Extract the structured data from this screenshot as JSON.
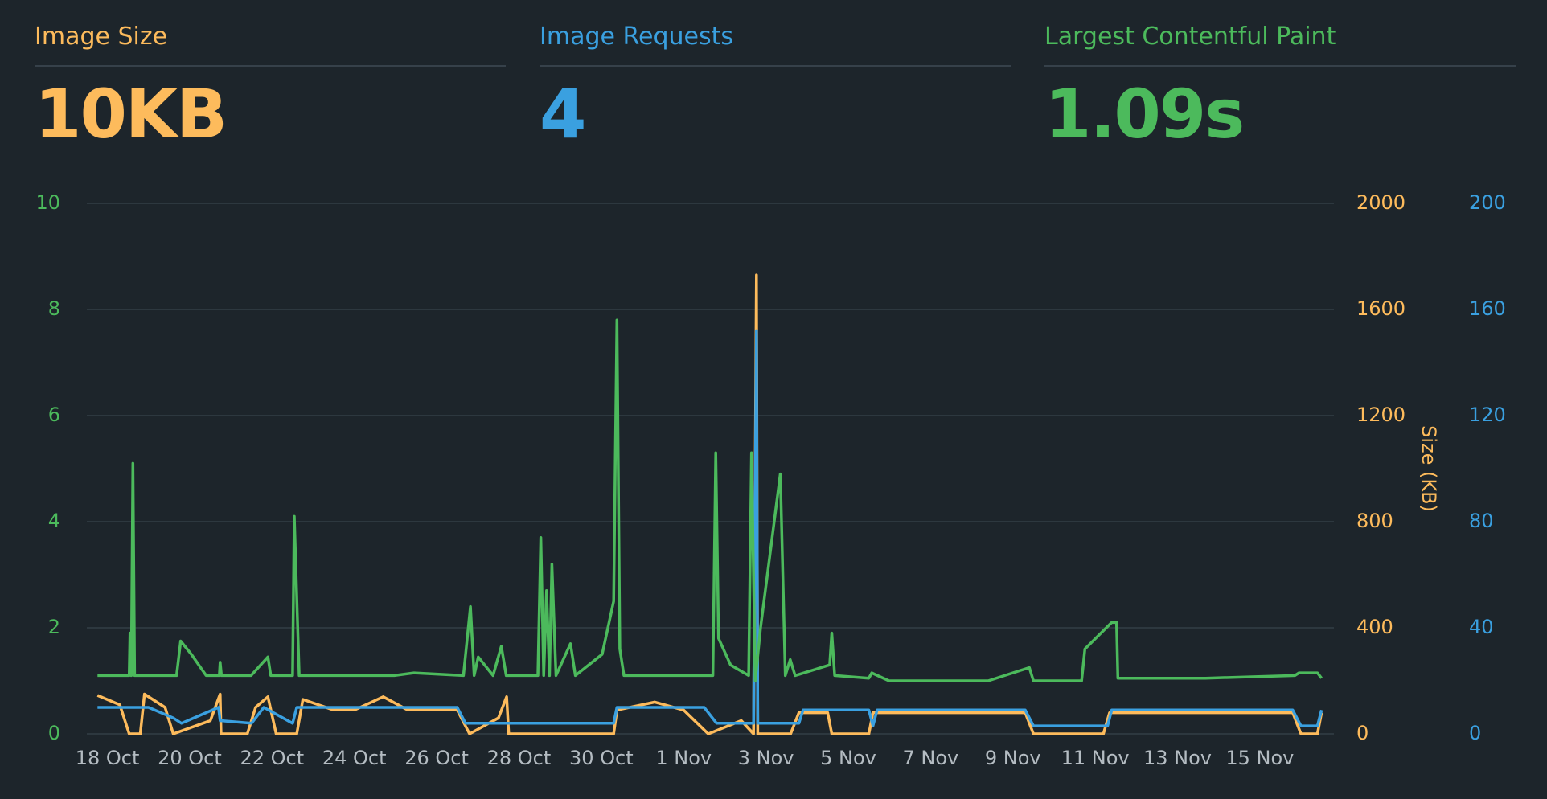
{
  "kpis": [
    {
      "title": "Image Size",
      "value": "10KB",
      "color": "#fdbb5c"
    },
    {
      "title": "Image Requests",
      "value": "4",
      "color": "#3aa0e0"
    },
    {
      "title": "Largest Contentful Paint",
      "value": "1.09s",
      "color": "#4cba5c"
    }
  ],
  "chart_data": {
    "type": "line",
    "xlim": [
      -0.5,
      29.8
    ],
    "xticks": [
      {
        "value": 0,
        "label": "18 Oct"
      },
      {
        "value": 2,
        "label": "20 Oct"
      },
      {
        "value": 4,
        "label": "22 Oct"
      },
      {
        "value": 6,
        "label": "24 Oct"
      },
      {
        "value": 8,
        "label": "26 Oct"
      },
      {
        "value": 10,
        "label": "28 Oct"
      },
      {
        "value": 12,
        "label": "30 Oct"
      },
      {
        "value": 14,
        "label": "1 Nov"
      },
      {
        "value": 16,
        "label": "3 Nov"
      },
      {
        "value": 18,
        "label": "5 Nov"
      },
      {
        "value": 20,
        "label": "7 Nov"
      },
      {
        "value": 22,
        "label": "9 Nov"
      },
      {
        "value": 24,
        "label": "11 Nov"
      },
      {
        "value": 26,
        "label": "13 Nov"
      },
      {
        "value": 28,
        "label": "15 Nov"
      }
    ],
    "ylim": [
      0,
      10
    ],
    "yticks": [
      0,
      2,
      4,
      6,
      8,
      10
    ],
    "ycolor": "#4cba5c",
    "y2lim": [
      0,
      2000
    ],
    "y2ticks": [
      0,
      400,
      800,
      1200,
      1600,
      2000
    ],
    "y2label": "Size (KB)",
    "y2color": "#fdbb5c",
    "y3lim": [
      0,
      200
    ],
    "y3ticks": [
      0,
      40,
      80,
      120,
      160,
      200
    ],
    "y3color": "#3aa0e0",
    "grid": true,
    "series": [
      {
        "color": "#4cba5c",
        "axis": "y",
        "x": [
          -0.24,
          0.53,
          0.55,
          0.58,
          0.62,
          0.66,
          1.68,
          1.78,
          2.04,
          2.4,
          2.72,
          2.74,
          2.77,
          3.49,
          3.9,
          3.97,
          4.5,
          4.54,
          4.66,
          6.97,
          7.45,
          8.65,
          8.82,
          8.91,
          9.01,
          9.37,
          9.57,
          9.69,
          10.46,
          10.53,
          10.6,
          10.67,
          10.74,
          10.8,
          10.9,
          11.25,
          11.37,
          12.02,
          12.3,
          12.38,
          12.45,
          12.55,
          14.18,
          14.71,
          14.78,
          14.85,
          15.14,
          15.58,
          15.65,
          15.74,
          15.87,
          16.35,
          16.47,
          16.59,
          16.71,
          17.55,
          17.6,
          17.67,
          18.5,
          18.57,
          18.99,
          21.4,
          22.4,
          22.5,
          23.67,
          23.75,
          24.4,
          24.52,
          24.55,
          26.68,
          28.85,
          28.95,
          29.4,
          29.5
        ],
        "values": [
          1.1,
          1.1,
          1.9,
          1.1,
          5.1,
          1.1,
          1.1,
          1.75,
          1.5,
          1.1,
          1.1,
          1.35,
          1.1,
          1.1,
          1.45,
          1.1,
          1.1,
          4.1,
          1.1,
          1.1,
          1.15,
          1.1,
          2.4,
          1.1,
          1.45,
          1.1,
          1.65,
          1.1,
          1.1,
          3.7,
          1.1,
          2.7,
          1.1,
          3.2,
          1.1,
          1.7,
          1.1,
          1.5,
          2.5,
          7.8,
          1.6,
          1.1,
          1.1,
          1.1,
          5.3,
          1.8,
          1.3,
          1.1,
          5.3,
          1.0,
          2.0,
          4.9,
          1.1,
          1.4,
          1.1,
          1.3,
          1.9,
          1.1,
          1.05,
          1.15,
          1.0,
          1.0,
          1.25,
          1.0,
          1.0,
          1.6,
          2.1,
          2.1,
          1.05,
          1.05,
          1.1,
          1.15,
          1.15,
          1.05
        ]
      },
      {
        "color": "#fdbb5c",
        "axis": "y2",
        "x": [
          -0.24,
          0.3,
          0.53,
          0.8,
          0.9,
          1.4,
          1.6,
          2.5,
          2.74,
          2.76,
          3.4,
          3.6,
          3.9,
          4.1,
          4.6,
          4.75,
          5.5,
          6.0,
          6.7,
          7.3,
          8.5,
          8.8,
          9.5,
          9.7,
          9.75,
          12.3,
          12.38,
          13.3,
          14.0,
          14.6,
          15.4,
          15.7,
          15.77,
          15.8,
          16.6,
          16.8,
          17.5,
          17.6,
          18.5,
          18.6,
          22.3,
          22.5,
          24.2,
          24.35,
          28.8,
          29.0,
          29.4,
          29.5
        ],
        "values": [
          145,
          110,
          0,
          0,
          150,
          100,
          0,
          50,
          150,
          0,
          0,
          100,
          140,
          0,
          0,
          130,
          90,
          90,
          140,
          90,
          90,
          0,
          60,
          140,
          0,
          0,
          90,
          120,
          90,
          0,
          50,
          0,
          1730,
          0,
          0,
          80,
          80,
          0,
          0,
          80,
          80,
          0,
          0,
          80,
          80,
          0,
          0,
          80
        ]
      },
      {
        "color": "#3aa0e0",
        "axis": "y3",
        "x": [
          -0.24,
          1.0,
          1.6,
          1.8,
          2.7,
          2.74,
          3.5,
          3.8,
          4.5,
          4.6,
          6.0,
          8.5,
          8.7,
          9.7,
          12.3,
          12.38,
          14.5,
          14.8,
          15.7,
          15.77,
          15.8,
          16.8,
          16.9,
          18.5,
          18.6,
          18.7,
          22.3,
          22.5,
          24.3,
          24.4,
          28.8,
          29.0,
          29.4,
          29.5
        ],
        "values": [
          10,
          10,
          6,
          4,
          10,
          5,
          4,
          10,
          4,
          10,
          10,
          10,
          4,
          4,
          4,
          10,
          10,
          4,
          4,
          152,
          4,
          4,
          9,
          9,
          3,
          9,
          9,
          3,
          3,
          9,
          9,
          3,
          3,
          9
        ]
      }
    ]
  }
}
